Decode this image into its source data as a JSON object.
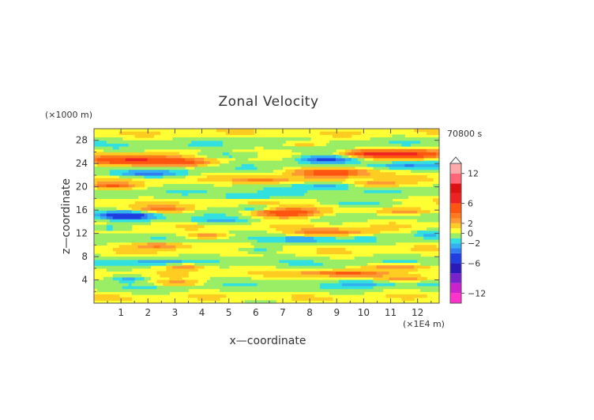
{
  "chart_data": {
    "type": "heatmap",
    "title": "Zonal Velocity",
    "xlabel": "x—coordinate",
    "ylabel": "z—coordinate",
    "x_unit": "(×1E4 m)",
    "y_unit": "(×1000 m)",
    "time_label": "70800 s",
    "xlim": [
      0,
      12.8
    ],
    "ylim": [
      0,
      30
    ],
    "x_ticks": [
      1,
      2,
      3,
      4,
      5,
      6,
      7,
      8,
      9,
      10,
      11,
      12
    ],
    "y_ticks": [
      4,
      8,
      12,
      16,
      20,
      24,
      28
    ],
    "x_tick_labels": [
      "1",
      "2",
      "3",
      "4",
      "5",
      "6",
      "7",
      "8",
      "9",
      "10",
      "11",
      "12"
    ],
    "y_tick_labels": [
      "4",
      "8",
      "12",
      "16",
      "20",
      "24",
      "28"
    ],
    "colorbar": {
      "range": [
        -14,
        14
      ],
      "tick_values": [
        12,
        6,
        2,
        0,
        -2,
        -6,
        -12
      ],
      "tick_labels": [
        "12",
        "6",
        "2",
        "0",
        "−2",
        "−6",
        "−12"
      ],
      "levels": [
        {
          "from": -14,
          "to": -12,
          "color": "#ff33cc"
        },
        {
          "from": -12,
          "to": -10,
          "color": "#cc22cc"
        },
        {
          "from": -10,
          "to": -8,
          "color": "#7a22cc"
        },
        {
          "from": -8,
          "to": -6,
          "color": "#2a1ab8"
        },
        {
          "from": -6,
          "to": -4,
          "color": "#1f3fe0"
        },
        {
          "from": -4,
          "to": -3,
          "color": "#2f7df0"
        },
        {
          "from": -3,
          "to": -2,
          "color": "#33b0f0"
        },
        {
          "from": -2,
          "to": -1,
          "color": "#33e0e0"
        },
        {
          "from": -1,
          "to": 0,
          "color": "#99ee66"
        },
        {
          "from": 0,
          "to": 1,
          "color": "#ffff33"
        },
        {
          "from": 1,
          "to": 2,
          "color": "#ffcc22"
        },
        {
          "from": 2,
          "to": 3,
          "color": "#ff9933"
        },
        {
          "from": 3,
          "to": 4,
          "color": "#ff7a1a"
        },
        {
          "from": 4,
          "to": 6,
          "color": "#ff5511"
        },
        {
          "from": 6,
          "to": 8,
          "color": "#ee2222"
        },
        {
          "from": 8,
          "to": 10,
          "color": "#dd1111"
        },
        {
          "from": 10,
          "to": 12,
          "color": "#ff6677"
        },
        {
          "from": 12,
          "to": 14,
          "color": "#ffaaaa"
        }
      ]
    },
    "features": [
      {
        "x": 1.3,
        "z": 24.6,
        "v": 5.5,
        "lx": 1.6,
        "lz": 0.9
      },
      {
        "x": 3.2,
        "z": 24.2,
        "v": 4.0,
        "lx": 1.4,
        "lz": 0.7
      },
      {
        "x": 0.6,
        "z": 20.2,
        "v": 4.0,
        "lx": 0.9,
        "lz": 0.6
      },
      {
        "x": 2.0,
        "z": 22.3,
        "v": -3.0,
        "lx": 1.5,
        "lz": 0.6
      },
      {
        "x": 1.2,
        "z": 15.1,
        "v": -5.0,
        "lx": 1.0,
        "lz": 0.7
      },
      {
        "x": 2.6,
        "z": 16.2,
        "v": 3.0,
        "lx": 1.2,
        "lz": 0.6
      },
      {
        "x": 0.5,
        "z": 13.0,
        "v": -2.5,
        "lx": 0.8,
        "lz": 0.6
      },
      {
        "x": 7.2,
        "z": 15.6,
        "v": 6.0,
        "lx": 1.4,
        "lz": 0.9
      },
      {
        "x": 6.1,
        "z": 16.4,
        "v": -3.0,
        "lx": 0.8,
        "lz": 0.5
      },
      {
        "x": 5.6,
        "z": 18.3,
        "v": -2.5,
        "lx": 1.0,
        "lz": 0.6
      },
      {
        "x": 8.6,
        "z": 24.8,
        "v": -5.0,
        "lx": 1.2,
        "lz": 0.7
      },
      {
        "x": 8.9,
        "z": 22.6,
        "v": 6.0,
        "lx": 1.5,
        "lz": 0.8
      },
      {
        "x": 8.6,
        "z": 20.3,
        "v": -3.0,
        "lx": 1.2,
        "lz": 0.6
      },
      {
        "x": 7.8,
        "z": 27.4,
        "v": 3.0,
        "lx": 0.8,
        "lz": 0.5
      },
      {
        "x": 10.0,
        "z": 25.8,
        "v": 3.5,
        "lx": 0.8,
        "lz": 0.6
      },
      {
        "x": 11.6,
        "z": 25.7,
        "v": 6.0,
        "lx": 1.4,
        "lz": 0.8
      },
      {
        "x": 11.5,
        "z": 23.8,
        "v": -2.5,
        "lx": 1.2,
        "lz": 0.6
      },
      {
        "x": 10.5,
        "z": 20.5,
        "v": 3.0,
        "lx": 1.0,
        "lz": 0.5
      },
      {
        "x": 9.8,
        "z": 17.2,
        "v": -3.0,
        "lx": 1.2,
        "lz": 0.6
      },
      {
        "x": 11.6,
        "z": 15.8,
        "v": 3.5,
        "lx": 1.1,
        "lz": 0.6
      },
      {
        "x": 4.6,
        "z": 14.2,
        "v": -2.5,
        "lx": 1.2,
        "lz": 0.6
      },
      {
        "x": 2.4,
        "z": 10.0,
        "v": 3.5,
        "lx": 1.0,
        "lz": 0.6
      },
      {
        "x": 4.2,
        "z": 11.6,
        "v": 3.0,
        "lx": 0.9,
        "lz": 0.5
      },
      {
        "x": 8.8,
        "z": 12.2,
        "v": 3.5,
        "lx": 1.5,
        "lz": 0.6
      },
      {
        "x": 7.8,
        "z": 11.0,
        "v": -2.5,
        "lx": 1.0,
        "lz": 0.5
      },
      {
        "x": 2.3,
        "z": 7.2,
        "v": -2.5,
        "lx": 1.0,
        "lz": 0.5
      },
      {
        "x": 3.4,
        "z": 6.3,
        "v": 3.0,
        "lx": 0.8,
        "lz": 0.5
      },
      {
        "x": 3.1,
        "z": 3.5,
        "v": 3.0,
        "lx": 0.9,
        "lz": 0.5
      },
      {
        "x": 1.3,
        "z": 4.3,
        "v": -2.5,
        "lx": 0.7,
        "lz": 0.5
      },
      {
        "x": 9.2,
        "z": 5.2,
        "v": 3.5,
        "lx": 1.6,
        "lz": 0.5
      },
      {
        "x": 11.2,
        "z": 6.3,
        "v": 3.0,
        "lx": 1.2,
        "lz": 0.5
      },
      {
        "x": 10.0,
        "z": 3.4,
        "v": -2.0,
        "lx": 1.0,
        "lz": 0.5
      },
      {
        "x": 11.6,
        "z": 4.2,
        "v": 3.0,
        "lx": 0.9,
        "lz": 0.5
      },
      {
        "x": 6.0,
        "z": 9.2,
        "v": -2.0,
        "lx": 0.9,
        "lz": 0.5
      },
      {
        "x": 12.4,
        "z": 12.0,
        "v": -2.0,
        "lx": 0.5,
        "lz": 0.6
      },
      {
        "x": 5.0,
        "z": 25.5,
        "v": -2.0,
        "lx": 1.5,
        "lz": 0.5
      },
      {
        "x": 6.2,
        "z": 21.2,
        "v": 3.0,
        "lx": 1.0,
        "lz": 0.5
      }
    ]
  }
}
